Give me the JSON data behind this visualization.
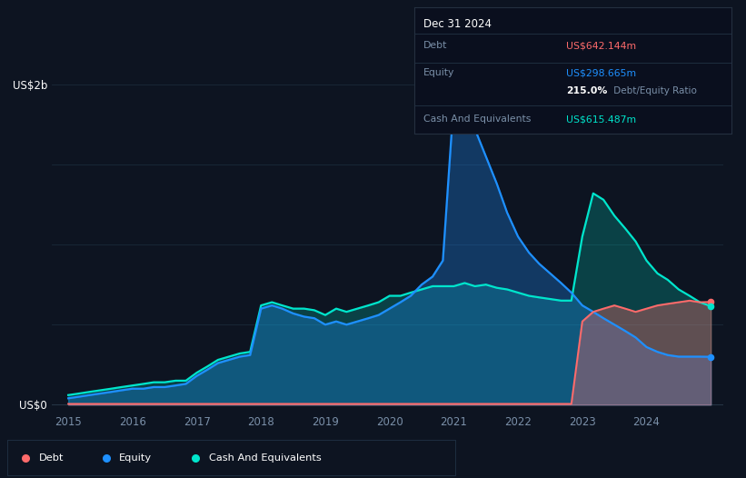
{
  "bg_color": "#0d1421",
  "plot_bg_color": "#0d1421",
  "debt_color": "#ff6b6b",
  "equity_color": "#1e90ff",
  "cash_color": "#00e5cc",
  "grid_color": "#1a2a3a",
  "tooltip_bg": "#0a0f1e",
  "tooltip_border": "#2a3a5a",
  "label_color": "#7a8fa8",
  "title_text": "Dec 31 2024",
  "debt_label": "Debt",
  "equity_label": "Equity",
  "cash_label": "Cash And Equivalents",
  "debt_value": "US$642.144m",
  "equity_value": "US$298.665m",
  "ratio_text": "215.0%",
  "ratio_suffix": " Debt/Equity Ratio",
  "cash_value": "US$615.487m",
  "ylabel_top": "US$2b",
  "ylabel_bot": "US$0",
  "years_x": [
    2015.0,
    2015.17,
    2015.33,
    2015.5,
    2015.67,
    2015.83,
    2016.0,
    2016.17,
    2016.33,
    2016.5,
    2016.67,
    2016.83,
    2017.0,
    2017.17,
    2017.33,
    2017.5,
    2017.67,
    2017.83,
    2018.0,
    2018.17,
    2018.33,
    2018.5,
    2018.67,
    2018.83,
    2019.0,
    2019.17,
    2019.33,
    2019.5,
    2019.67,
    2019.83,
    2020.0,
    2020.17,
    2020.33,
    2020.5,
    2020.67,
    2020.83,
    2021.0,
    2021.17,
    2021.33,
    2021.5,
    2021.67,
    2021.83,
    2022.0,
    2022.17,
    2022.33,
    2022.5,
    2022.67,
    2022.83,
    2023.0,
    2023.17,
    2023.33,
    2023.5,
    2023.67,
    2023.83,
    2024.0,
    2024.17,
    2024.33,
    2024.5,
    2024.67,
    2024.83,
    2025.0
  ],
  "equity": [
    0.04,
    0.05,
    0.06,
    0.07,
    0.08,
    0.09,
    0.1,
    0.1,
    0.11,
    0.11,
    0.12,
    0.13,
    0.18,
    0.22,
    0.26,
    0.28,
    0.3,
    0.31,
    0.6,
    0.62,
    0.6,
    0.57,
    0.55,
    0.54,
    0.5,
    0.52,
    0.5,
    0.52,
    0.54,
    0.56,
    0.6,
    0.64,
    0.68,
    0.75,
    0.8,
    0.9,
    1.9,
    1.85,
    1.72,
    1.55,
    1.38,
    1.2,
    1.05,
    0.95,
    0.88,
    0.82,
    0.76,
    0.7,
    0.62,
    0.58,
    0.54,
    0.5,
    0.46,
    0.42,
    0.36,
    0.33,
    0.31,
    0.3,
    0.3,
    0.3,
    0.299
  ],
  "cash": [
    0.06,
    0.07,
    0.08,
    0.09,
    0.1,
    0.11,
    0.12,
    0.13,
    0.14,
    0.14,
    0.15,
    0.15,
    0.2,
    0.24,
    0.28,
    0.3,
    0.32,
    0.33,
    0.62,
    0.64,
    0.62,
    0.6,
    0.6,
    0.59,
    0.56,
    0.6,
    0.58,
    0.6,
    0.62,
    0.64,
    0.68,
    0.68,
    0.7,
    0.72,
    0.74,
    0.74,
    0.74,
    0.76,
    0.74,
    0.75,
    0.73,
    0.72,
    0.7,
    0.68,
    0.67,
    0.66,
    0.65,
    0.65,
    1.05,
    1.32,
    1.28,
    1.18,
    1.1,
    1.02,
    0.9,
    0.82,
    0.78,
    0.72,
    0.68,
    0.64,
    0.615
  ],
  "debt": [
    0.005,
    0.005,
    0.005,
    0.005,
    0.005,
    0.005,
    0.005,
    0.005,
    0.005,
    0.005,
    0.005,
    0.005,
    0.005,
    0.005,
    0.005,
    0.005,
    0.005,
    0.005,
    0.005,
    0.005,
    0.005,
    0.005,
    0.005,
    0.005,
    0.005,
    0.005,
    0.005,
    0.005,
    0.005,
    0.005,
    0.005,
    0.005,
    0.005,
    0.005,
    0.005,
    0.005,
    0.005,
    0.005,
    0.005,
    0.005,
    0.005,
    0.005,
    0.005,
    0.005,
    0.005,
    0.005,
    0.005,
    0.005,
    0.52,
    0.58,
    0.6,
    0.62,
    0.6,
    0.58,
    0.6,
    0.62,
    0.63,
    0.64,
    0.65,
    0.64,
    0.642
  ]
}
